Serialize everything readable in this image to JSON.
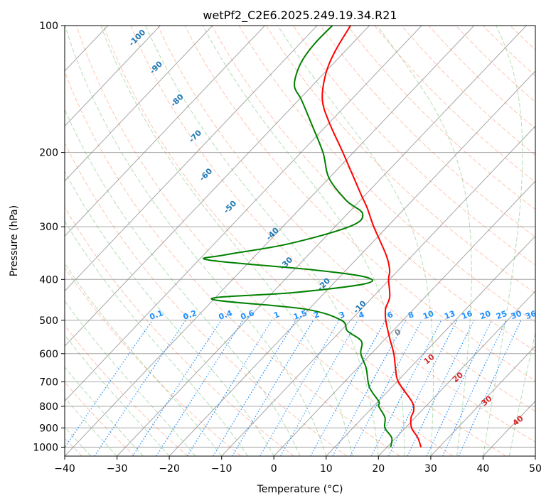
{
  "chart_data": {
    "type": "skew-t",
    "title": "wetPf2_C2E6.2025.249.19.34.R21",
    "xlabel": "Temperature (°C)",
    "ylabel": "Pressure (hPa)",
    "xlim": [
      -40,
      50
    ],
    "ylim": [
      1050,
      100
    ],
    "xticks": [
      -40,
      -30,
      -20,
      -10,
      0,
      10,
      20,
      30,
      40,
      50
    ],
    "xtick_labels": [
      "−40",
      "−30",
      "−20",
      "−10",
      "0",
      "10",
      "20",
      "30",
      "40",
      "50"
    ],
    "yticks": [
      1000,
      900,
      800,
      700,
      600,
      500,
      400,
      300,
      200,
      100
    ],
    "ytick_labels": [
      "1000",
      "900",
      "800",
      "700",
      "600",
      "500",
      "400",
      "300",
      "200",
      "100"
    ],
    "grid": true,
    "colors": {
      "temperature": "#ff0000",
      "dewpoint": "#008000",
      "isotherm": "#808080",
      "dry_adiabat": "#ff7f50",
      "moist_adiabat": "#2ca02c",
      "mixing_ratio": "#1e90ff",
      "isotherm_label": "#1f77b4",
      "theta_e_label": "#d62728",
      "zero_label": "#808080"
    },
    "series": [
      {
        "name": "Temperature",
        "points": [
          {
            "p": 1000,
            "t": 26.5
          },
          {
            "p": 950,
            "t": 24.2
          },
          {
            "p": 900,
            "t": 21.2
          },
          {
            "p": 850,
            "t": 19.2
          },
          {
            "p": 820,
            "t": 18.5
          },
          {
            "p": 780,
            "t": 16.5
          },
          {
            "p": 700,
            "t": 10.3
          },
          {
            "p": 650,
            "t": 7.3
          },
          {
            "p": 600,
            "t": 4.3
          },
          {
            "p": 550,
            "t": 0.6
          },
          {
            "p": 500,
            "t": -3.3
          },
          {
            "p": 470,
            "t": -5.4
          },
          {
            "p": 440,
            "t": -6.8
          },
          {
            "p": 400,
            "t": -10.2
          },
          {
            "p": 380,
            "t": -11.7
          },
          {
            "p": 350,
            "t": -15.1
          },
          {
            "p": 300,
            "t": -22.6
          },
          {
            "p": 270,
            "t": -27.4
          },
          {
            "p": 250,
            "t": -31.2
          },
          {
            "p": 200,
            "t": -42.0
          },
          {
            "p": 170,
            "t": -50.0
          },
          {
            "p": 150,
            "t": -55.5
          },
          {
            "p": 130,
            "t": -59.6
          },
          {
            "p": 115,
            "t": -61.9
          },
          {
            "p": 100,
            "t": -63.6
          }
        ]
      },
      {
        "name": "Dewpoint",
        "points": [
          {
            "p": 1000,
            "t": 20.7
          },
          {
            "p": 950,
            "t": 19.2
          },
          {
            "p": 900,
            "t": 16.1
          },
          {
            "p": 850,
            "t": 14.2
          },
          {
            "p": 800,
            "t": 11.0
          },
          {
            "p": 780,
            "t": 10.2
          },
          {
            "p": 720,
            "t": 5.7
          },
          {
            "p": 650,
            "t": 1.7
          },
          {
            "p": 600,
            "t": -2.0
          },
          {
            "p": 560,
            "t": -4.2
          },
          {
            "p": 530,
            "t": -8.7
          },
          {
            "p": 500,
            "t": -11.8
          },
          {
            "p": 470,
            "t": -21.0
          },
          {
            "p": 445,
            "t": -40.5
          },
          {
            "p": 430,
            "t": -26.0
          },
          {
            "p": 410,
            "t": -14.0
          },
          {
            "p": 395,
            "t": -15.0
          },
          {
            "p": 380,
            "t": -26.0
          },
          {
            "p": 360,
            "t": -48.0
          },
          {
            "p": 350,
            "t": -46.0
          },
          {
            "p": 330,
            "t": -36.0
          },
          {
            "p": 300,
            "t": -27.3
          },
          {
            "p": 280,
            "t": -27.0
          },
          {
            "p": 260,
            "t": -32.6
          },
          {
            "p": 230,
            "t": -40.0
          },
          {
            "p": 200,
            "t": -45.8
          },
          {
            "p": 170,
            "t": -53.5
          },
          {
            "p": 150,
            "t": -59.5
          },
          {
            "p": 140,
            "t": -63.1
          },
          {
            "p": 130,
            "t": -65.2
          },
          {
            "p": 120,
            "t": -66.6
          },
          {
            "p": 110,
            "t": -67.2
          },
          {
            "p": 100,
            "t": -67.1
          }
        ]
      }
    ],
    "isotherm_labels": [
      {
        "text": "-100",
        "t": -100
      },
      {
        "text": "-90",
        "t": -90
      },
      {
        "text": "-80",
        "t": -80
      },
      {
        "text": "-70",
        "t": -70
      },
      {
        "text": "-60",
        "t": -60
      },
      {
        "text": "-50",
        "t": -50
      },
      {
        "text": "-40",
        "t": -40
      },
      {
        "text": "-30",
        "t": -30
      },
      {
        "text": "-20",
        "t": -20
      },
      {
        "text": "-10",
        "t": -10
      }
    ],
    "isotherm_label_positions": [
      {
        "p": 108,
        "t": -101.5
      },
      {
        "p": 127,
        "t": -92.5
      },
      {
        "p": 152,
        "t": -82.5
      },
      {
        "p": 185,
        "t": -72.5
      },
      {
        "p": 228,
        "t": -63.5
      },
      {
        "p": 272,
        "t": -53.0
      },
      {
        "p": 315,
        "t": -40.0
      },
      {
        "p": 370,
        "t": -32.0
      },
      {
        "p": 415,
        "t": -21.0
      },
      {
        "p": 470,
        "t": -10.0
      }
    ],
    "mixing_ratio_labels": [
      "0.1",
      "0.2",
      "0.4",
      "0.6",
      "1",
      "1.5",
      "2",
      "3",
      "4",
      "6",
      "8",
      "10",
      "13",
      "16",
      "20",
      "25",
      "30",
      "36"
    ],
    "mixing_ratio_label_t": [
      -22.3,
      -15.9,
      -9.1,
      -4.9,
      0.7,
      5.2,
      8.3,
      13.2,
      16.9,
      22.4,
      26.4,
      29.7,
      33.8,
      37.1,
      40.6,
      43.7,
      46.5,
      49.3
    ],
    "theta_e_labels": [
      {
        "text": "0",
        "t": 24.0,
        "p": 540
      },
      {
        "text": "10",
        "t": 30.0,
        "p": 625
      },
      {
        "text": "20",
        "t": 35.5,
        "p": 690
      },
      {
        "text": "30",
        "t": 41.0,
        "p": 785
      },
      {
        "text": "40",
        "t": 47.0,
        "p": 875
      }
    ]
  }
}
